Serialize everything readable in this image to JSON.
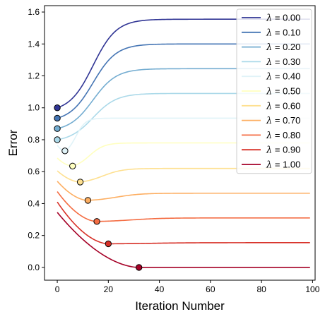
{
  "chart_data": {
    "type": "line",
    "xlabel": "Iteration Number",
    "ylabel": "Error",
    "xlim": [
      -5,
      101
    ],
    "ylim": [
      -0.08,
      1.64
    ],
    "xticks": [
      0,
      20,
      40,
      60,
      80,
      100
    ],
    "yticks": [
      0.0,
      0.2,
      0.4,
      0.6,
      0.8,
      1.0,
      1.2,
      1.4,
      1.6
    ],
    "xtick_labels": [
      "0",
      "20",
      "40",
      "60",
      "80",
      "100"
    ],
    "ytick_labels": [
      "0.0",
      "0.2",
      "0.4",
      "0.6",
      "0.8",
      "1.0",
      "1.2",
      "1.4",
      "1.6"
    ],
    "grid": false,
    "legend_position": "top-right",
    "series": [
      {
        "name": "λ = 0.00",
        "lambda_text": "0.00",
        "color": "#313695",
        "start": 1.0,
        "final": 1.555,
        "min_x": 0,
        "min_y": 1.0
      },
      {
        "name": "λ = 0.10",
        "lambda_text": "0.10",
        "color": "#4575b4",
        "start": 0.935,
        "final": 1.4,
        "min_x": 0,
        "min_y": 0.935
      },
      {
        "name": "λ = 0.20",
        "lambda_text": "0.20",
        "color": "#74add1",
        "start": 0.87,
        "final": 1.245,
        "min_x": 0,
        "min_y": 0.87
      },
      {
        "name": "λ = 0.30",
        "lambda_text": "0.30",
        "color": "#abd9e9",
        "start": 0.8,
        "final": 1.09,
        "min_x": 0,
        "min_y": 0.8
      },
      {
        "name": "λ = 0.40",
        "lambda_text": "0.40",
        "color": "#e0f3f8",
        "start": 0.765,
        "final": 0.935,
        "min_x": 3,
        "min_y": 0.73
      },
      {
        "name": "λ = 0.50",
        "lambda_text": "0.50",
        "color": "#ffffbf",
        "start": 0.685,
        "final": 0.78,
        "min_x": 6,
        "min_y": 0.635
      },
      {
        "name": "λ = 0.60",
        "lambda_text": "0.60",
        "color": "#fee090",
        "start": 0.605,
        "final": 0.62,
        "min_x": 9,
        "min_y": 0.535
      },
      {
        "name": "λ = 0.70",
        "lambda_text": "0.70",
        "color": "#fdae61",
        "start": 0.54,
        "final": 0.465,
        "min_x": 12,
        "min_y": 0.42
      },
      {
        "name": "λ = 0.80",
        "lambda_text": "0.80",
        "color": "#f46d43",
        "start": 0.475,
        "final": 0.31,
        "min_x": 15.5,
        "min_y": 0.288
      },
      {
        "name": "λ = 0.90",
        "lambda_text": "0.90",
        "color": "#d73027",
        "start": 0.41,
        "final": 0.155,
        "min_x": 20,
        "min_y": 0.148
      },
      {
        "name": "λ = 1.00",
        "lambda_text": "1.00",
        "color": "#a50026",
        "start": 0.345,
        "final": 0.0,
        "min_x": 32,
        "min_y": 0.0
      }
    ]
  }
}
